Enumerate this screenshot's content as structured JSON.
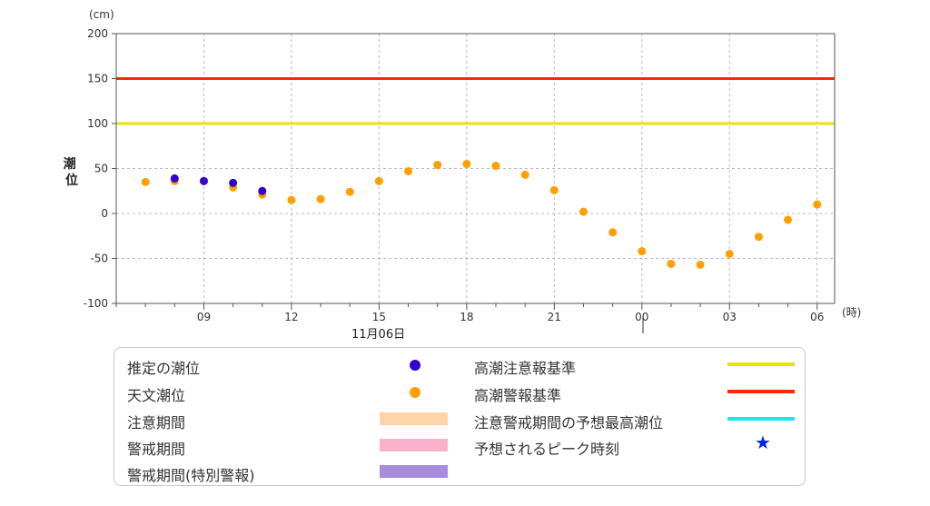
{
  "chart_data": {
    "type": "scatter",
    "unit_label": "(cm)",
    "ylabel": "潮位",
    "x_unit_label": "(時)",
    "date_label": "11月06日",
    "ylim": [
      -100,
      200
    ],
    "yticks": [
      -100,
      -50,
      0,
      50,
      100,
      150,
      200
    ],
    "xlim": [
      6,
      30.6
    ],
    "xticks": [
      {
        "h": 9,
        "label": "09"
      },
      {
        "h": 12,
        "label": "12"
      },
      {
        "h": 15,
        "label": "15"
      },
      {
        "h": 18,
        "label": "18"
      },
      {
        "h": 21,
        "label": "21"
      },
      {
        "h": 24,
        "label": "00"
      },
      {
        "h": 27,
        "label": "03"
      },
      {
        "h": 30,
        "label": "06"
      }
    ],
    "grid": true,
    "thresholds": [
      {
        "name": "高潮注意報基準",
        "value": 100,
        "color": "#f0e000"
      },
      {
        "name": "高潮警報基準",
        "value": 150,
        "color": "#ff2800"
      }
    ],
    "series": [
      {
        "name": "天文潮位",
        "color": "#ff9f00",
        "x": [
          7,
          8,
          9,
          10,
          11,
          12,
          13,
          14,
          15,
          16,
          17,
          18,
          19,
          20,
          21,
          22,
          23,
          24,
          25,
          26,
          27,
          28,
          29,
          30
        ],
        "y": [
          35,
          36,
          36,
          29,
          21,
          15,
          16,
          24,
          36,
          47,
          54,
          55,
          53,
          43,
          26,
          2,
          -21,
          -42,
          -56,
          -57,
          -45,
          -26,
          -7,
          10
        ]
      },
      {
        "name": "推定の潮位",
        "color": "#3300cc",
        "x": [
          8,
          9,
          10,
          11
        ],
        "y": [
          39,
          36,
          34,
          25
        ]
      }
    ]
  },
  "legend": {
    "estimated": "推定の潮位",
    "astronomical": "天文潮位",
    "caution_period": "注意期間",
    "warning_period": "警戒期間",
    "special_warning_period": "警戒期間(特別警報)",
    "advisory_level": "高潮注意報基準",
    "warning_level": "高潮警報基準",
    "forecast_max": "注意警戒期間の予想最高潮位",
    "peak_time": "予想されるピーク時刻",
    "colors": {
      "estimated": "#3300cc",
      "astronomical": "#ff9f00",
      "caution_period": "#fdd5a8",
      "warning_period": "#f9b1cc",
      "special_warning_period": "#a78bdc",
      "advisory_level": "#f0e000",
      "warning_level": "#ff2800",
      "forecast_max": "#1ee6f0",
      "peak_time": "#0022ee"
    }
  }
}
